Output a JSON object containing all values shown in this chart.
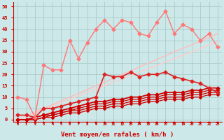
{
  "x": [
    0,
    1,
    2,
    3,
    4,
    5,
    6,
    7,
    8,
    9,
    10,
    11,
    12,
    13,
    14,
    15,
    16,
    17,
    18,
    19,
    20,
    21,
    22,
    23
  ],
  "background_color": "#cce8e8",
  "grid_color": "#aacccc",
  "xlabel": "Vent moyen/en rafales ( km/h )",
  "xlabel_fontsize": 6.5,
  "xlabel_color": "#cc0000",
  "tick_color": "#cc0000",
  "ylim": [
    -1,
    52
  ],
  "xlim": [
    -0.5,
    23.5
  ],
  "yticks": [
    0,
    5,
    10,
    15,
    20,
    25,
    30,
    35,
    40,
    45,
    50
  ],
  "series": [
    {
      "y": [
        0,
        0,
        0,
        1,
        1,
        2,
        3,
        3,
        4,
        5,
        5,
        6,
        6,
        7,
        7,
        8,
        8,
        9,
        9,
        9,
        10,
        10,
        11,
        11
      ],
      "color": "#cc0000",
      "linewidth": 0.9,
      "marker": "D",
      "markersize": 2.0
    },
    {
      "y": [
        0,
        0,
        0,
        1,
        2,
        3,
        4,
        4,
        5,
        6,
        6,
        7,
        7,
        8,
        8,
        9,
        9,
        10,
        10,
        10,
        11,
        11,
        12,
        12
      ],
      "color": "#cc0000",
      "linewidth": 0.9,
      "marker": "D",
      "markersize": 2.0
    },
    {
      "y": [
        0,
        0,
        1,
        2,
        2,
        3,
        4,
        5,
        6,
        7,
        7,
        8,
        8,
        9,
        9,
        10,
        10,
        11,
        11,
        11,
        12,
        12,
        13,
        13
      ],
      "color": "#cc0000",
      "linewidth": 0.9,
      "marker": "D",
      "markersize": 2.0
    },
    {
      "y": [
        0,
        0,
        1,
        2,
        3,
        4,
        5,
        6,
        7,
        8,
        8,
        9,
        9,
        10,
        10,
        11,
        11,
        12,
        12,
        12,
        13,
        13,
        14,
        14
      ],
      "color": "#cc0000",
      "linewidth": 1.2,
      "marker": "D",
      "markersize": 2.5
    },
    {
      "y": [
        2,
        2,
        1,
        5,
        5,
        6,
        7,
        8,
        9,
        10,
        20,
        19,
        19,
        21,
        19,
        20,
        20,
        21,
        19,
        18,
        17,
        16,
        14,
        12
      ],
      "color": "#dd2222",
      "linewidth": 1.2,
      "marker": "D",
      "markersize": 2.5
    },
    {
      "y": [
        10,
        9,
        1,
        24,
        22,
        22,
        35,
        27,
        34,
        40,
        44,
        40,
        44,
        43,
        38,
        37,
        43,
        48,
        38,
        42,
        40,
        35,
        38,
        32
      ],
      "color": "#ff7777",
      "linewidth": 1.0,
      "marker": "D",
      "markersize": 2.5
    },
    {
      "y": [
        0,
        1.7,
        3.3,
        5,
        6.6,
        8.3,
        10,
        11.6,
        13.3,
        15,
        16.5,
        18.3,
        20,
        21.6,
        23.3,
        25,
        26.6,
        28.3,
        30,
        31.5,
        33,
        34.6,
        36.3,
        38
      ],
      "color": "#ffbbbb",
      "linewidth": 1.0,
      "marker": null,
      "markersize": 0
    },
    {
      "y": [
        0,
        1.5,
        3,
        4.5,
        6,
        7.5,
        9,
        10.5,
        12,
        13.5,
        15,
        16.5,
        18,
        19.5,
        21,
        22.5,
        24,
        25.5,
        27,
        28.5,
        30,
        31.5,
        33,
        34.5
      ],
      "color": "#ffcccc",
      "linewidth": 1.0,
      "marker": null,
      "markersize": 0
    }
  ]
}
